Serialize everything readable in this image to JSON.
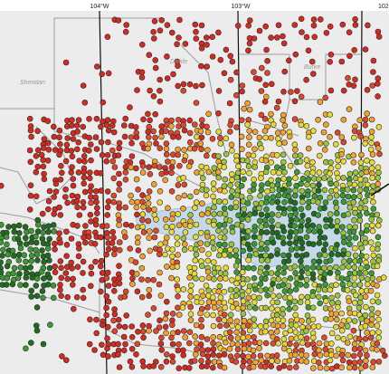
{
  "header": {
    "longitude_labels": [
      "104°W",
      "103°W",
      "102"
    ]
  },
  "map": {
    "place_labels": [
      "Sheridan",
      "Divide",
      "Burke"
    ]
  }
}
